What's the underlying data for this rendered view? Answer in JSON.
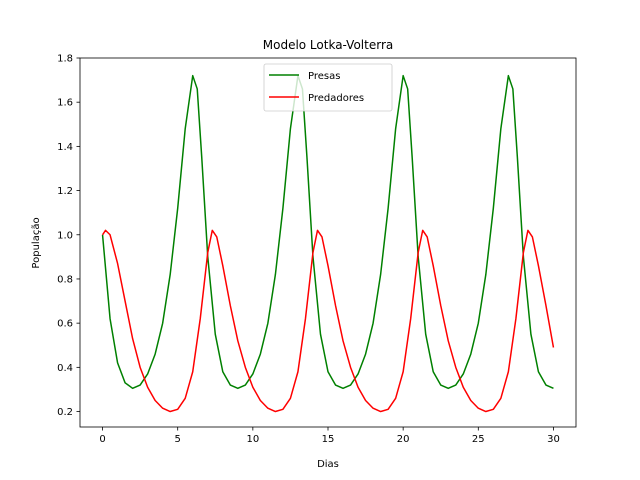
{
  "chart_data": {
    "type": "line",
    "title": "Modelo Lotka-Volterra",
    "xlabel": "Dias",
    "ylabel": "População",
    "xlim": [
      -1.5,
      31.5
    ],
    "ylim": [
      0.13,
      1.8
    ],
    "xticks": [
      0,
      5,
      10,
      15,
      20,
      25,
      30
    ],
    "yticks": [
      0.2,
      0.4,
      0.6,
      0.8,
      1.0,
      1.2,
      1.4,
      1.6,
      1.8
    ],
    "xtick_labels": [
      "0",
      "5",
      "10",
      "15",
      "20",
      "25",
      "30"
    ],
    "ytick_labels": [
      "0.2",
      "0.4",
      "0.6",
      "0.8",
      "1.0",
      "1.2",
      "1.4",
      "1.6",
      "1.8"
    ],
    "grid": false,
    "legend_position": "top-center",
    "series": [
      {
        "name": "Presas",
        "color": "#008000",
        "points": [
          [
            0,
            1.0
          ],
          [
            0.5,
            0.62
          ],
          [
            1.0,
            0.42
          ],
          [
            1.5,
            0.33
          ],
          [
            2.0,
            0.305
          ],
          [
            2.5,
            0.32
          ],
          [
            3.0,
            0.37
          ],
          [
            3.5,
            0.46
          ],
          [
            4.0,
            0.6
          ],
          [
            4.5,
            0.82
          ],
          [
            5.0,
            1.12
          ],
          [
            5.5,
            1.48
          ],
          [
            6.0,
            1.72
          ],
          [
            6.3,
            1.66
          ],
          [
            6.6,
            1.35
          ],
          [
            7.0,
            0.9
          ],
          [
            7.5,
            0.55
          ],
          [
            8.0,
            0.38
          ],
          [
            8.5,
            0.32
          ],
          [
            9.0,
            0.305
          ],
          [
            9.5,
            0.32
          ],
          [
            10.0,
            0.37
          ],
          [
            10.5,
            0.46
          ],
          [
            11.0,
            0.6
          ],
          [
            11.5,
            0.82
          ],
          [
            12.0,
            1.12
          ],
          [
            12.5,
            1.48
          ],
          [
            13.0,
            1.72
          ],
          [
            13.3,
            1.66
          ],
          [
            13.6,
            1.35
          ],
          [
            14.0,
            0.9
          ],
          [
            14.5,
            0.55
          ],
          [
            15.0,
            0.38
          ],
          [
            15.5,
            0.32
          ],
          [
            16.0,
            0.305
          ],
          [
            16.5,
            0.32
          ],
          [
            17.0,
            0.37
          ],
          [
            17.5,
            0.46
          ],
          [
            18.0,
            0.6
          ],
          [
            18.5,
            0.82
          ],
          [
            19.0,
            1.12
          ],
          [
            19.5,
            1.48
          ],
          [
            20.0,
            1.72
          ],
          [
            20.3,
            1.66
          ],
          [
            20.6,
            1.35
          ],
          [
            21.0,
            0.9
          ],
          [
            21.5,
            0.55
          ],
          [
            22.0,
            0.38
          ],
          [
            22.5,
            0.32
          ],
          [
            23.0,
            0.305
          ],
          [
            23.5,
            0.32
          ],
          [
            24.0,
            0.37
          ],
          [
            24.5,
            0.46
          ],
          [
            25.0,
            0.6
          ],
          [
            25.5,
            0.82
          ],
          [
            26.0,
            1.12
          ],
          [
            26.5,
            1.48
          ],
          [
            27.0,
            1.72
          ],
          [
            27.3,
            1.66
          ],
          [
            27.6,
            1.35
          ],
          [
            28.0,
            0.9
          ],
          [
            28.5,
            0.55
          ],
          [
            29.0,
            0.38
          ],
          [
            29.5,
            0.32
          ],
          [
            30.0,
            0.305
          ]
        ]
      },
      {
        "name": "Predadores",
        "color": "#ff0000",
        "points": [
          [
            0,
            1.0
          ],
          [
            0.2,
            1.02
          ],
          [
            0.5,
            1.0
          ],
          [
            1.0,
            0.87
          ],
          [
            1.5,
            0.7
          ],
          [
            2.0,
            0.53
          ],
          [
            2.5,
            0.4
          ],
          [
            3.0,
            0.31
          ],
          [
            3.5,
            0.25
          ],
          [
            4.0,
            0.215
          ],
          [
            4.5,
            0.2
          ],
          [
            5.0,
            0.21
          ],
          [
            5.5,
            0.26
          ],
          [
            6.0,
            0.38
          ],
          [
            6.5,
            0.62
          ],
          [
            7.0,
            0.92
          ],
          [
            7.3,
            1.02
          ],
          [
            7.6,
            0.99
          ],
          [
            8.0,
            0.86
          ],
          [
            8.5,
            0.68
          ],
          [
            9.0,
            0.52
          ],
          [
            9.5,
            0.4
          ],
          [
            10.0,
            0.31
          ],
          [
            10.5,
            0.25
          ],
          [
            11.0,
            0.215
          ],
          [
            11.5,
            0.2
          ],
          [
            12.0,
            0.21
          ],
          [
            12.5,
            0.26
          ],
          [
            13.0,
            0.38
          ],
          [
            13.5,
            0.62
          ],
          [
            14.0,
            0.92
          ],
          [
            14.3,
            1.02
          ],
          [
            14.6,
            0.99
          ],
          [
            15.0,
            0.86
          ],
          [
            15.5,
            0.68
          ],
          [
            16.0,
            0.52
          ],
          [
            16.5,
            0.4
          ],
          [
            17.0,
            0.31
          ],
          [
            17.5,
            0.25
          ],
          [
            18.0,
            0.215
          ],
          [
            18.5,
            0.2
          ],
          [
            19.0,
            0.21
          ],
          [
            19.5,
            0.26
          ],
          [
            20.0,
            0.38
          ],
          [
            20.5,
            0.62
          ],
          [
            21.0,
            0.92
          ],
          [
            21.3,
            1.02
          ],
          [
            21.6,
            0.99
          ],
          [
            22.0,
            0.86
          ],
          [
            22.5,
            0.68
          ],
          [
            23.0,
            0.52
          ],
          [
            23.5,
            0.4
          ],
          [
            24.0,
            0.31
          ],
          [
            24.5,
            0.25
          ],
          [
            25.0,
            0.215
          ],
          [
            25.5,
            0.2
          ],
          [
            26.0,
            0.21
          ],
          [
            26.5,
            0.26
          ],
          [
            27.0,
            0.38
          ],
          [
            27.5,
            0.62
          ],
          [
            28.0,
            0.92
          ],
          [
            28.3,
            1.02
          ],
          [
            28.6,
            0.99
          ],
          [
            29.0,
            0.86
          ],
          [
            29.5,
            0.68
          ],
          [
            30.0,
            0.49
          ]
        ]
      }
    ]
  }
}
